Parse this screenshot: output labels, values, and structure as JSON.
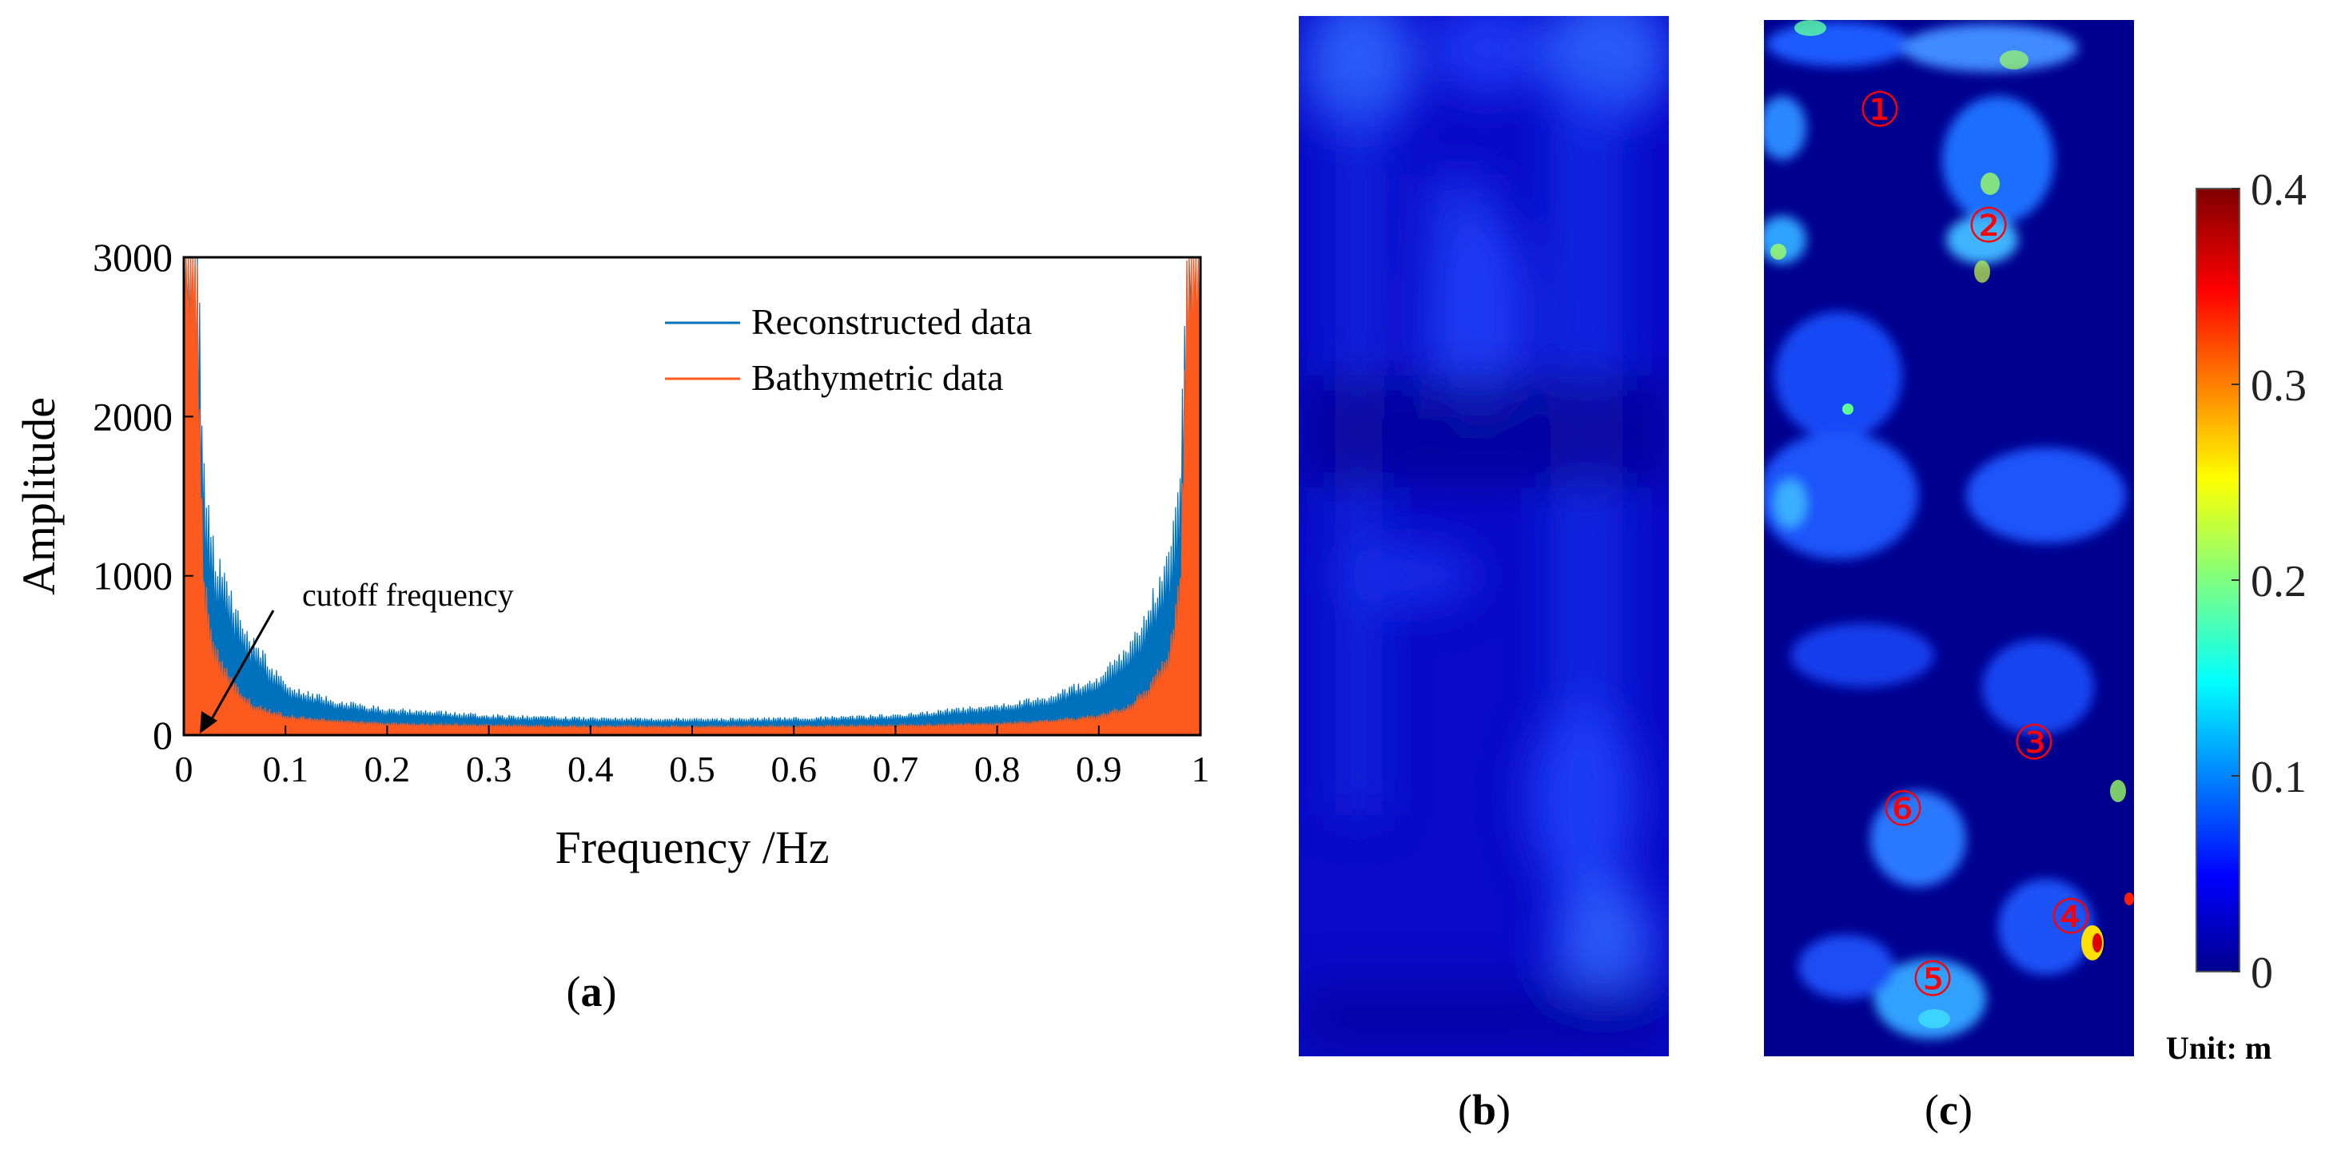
{
  "chart_data": [
    {
      "type": "line",
      "panel": "a",
      "caption_letter": "a",
      "xlabel": "Frequency /Hz",
      "ylabel": "Amplitude",
      "xlim": [
        0,
        1
      ],
      "ylim": [
        0,
        3000
      ],
      "xticks": [
        "0",
        "0.1",
        "0.2",
        "0.3",
        "0.4",
        "0.5",
        "0.6",
        "0.7",
        "0.8",
        "0.9",
        "1"
      ],
      "xtick_values": [
        0,
        0.1,
        0.2,
        0.3,
        0.4,
        0.5,
        0.6,
        0.7,
        0.8,
        0.9,
        1
      ],
      "yticks": [
        "0",
        "1000",
        "2000",
        "3000"
      ],
      "ytick_values": [
        0,
        1000,
        2000,
        3000
      ],
      "legend_position": "top-right",
      "annotation": {
        "text": "cutoff frequency",
        "x": 0.01,
        "y": 0
      },
      "series": [
        {
          "name": "Reconstructed data",
          "color": "#0072BD",
          "x": [
            0,
            0.01,
            0.02,
            0.03,
            0.05,
            0.07,
            0.1,
            0.15,
            0.2,
            0.3,
            0.4,
            0.5,
            0.6,
            0.7,
            0.8,
            0.85,
            0.9,
            0.93,
            0.95,
            0.97,
            0.98,
            0.99,
            1.0
          ],
          "values": [
            3000,
            3000,
            1300,
            900,
            650,
            450,
            250,
            170,
            130,
            100,
            85,
            80,
            85,
            100,
            150,
            190,
            290,
            450,
            650,
            900,
            1300,
            3000,
            3000
          ]
        },
        {
          "name": "Bathymetric data",
          "color": "#FF5A1E",
          "x": [
            0,
            0.01,
            0.02,
            0.03,
            0.05,
            0.07,
            0.1,
            0.15,
            0.2,
            0.3,
            0.4,
            0.5,
            0.6,
            0.7,
            0.8,
            0.85,
            0.9,
            0.93,
            0.95,
            0.97,
            0.98,
            0.99,
            1.0
          ],
          "values": [
            3000,
            3000,
            800,
            450,
            250,
            150,
            100,
            75,
            60,
            50,
            45,
            45,
            45,
            50,
            60,
            75,
            100,
            150,
            250,
            450,
            800,
            3000,
            3000
          ]
        }
      ]
    },
    {
      "type": "heatmap",
      "panel": "b",
      "caption_letter": "b",
      "colormap": "jet",
      "vmin": 0,
      "vmax": 0.4
    },
    {
      "type": "heatmap",
      "panel": "c",
      "caption_letter": "c",
      "colormap": "jet",
      "vmin": 0,
      "vmax": 0.4,
      "markers": [
        "①",
        "②",
        "③",
        "④",
        "⑤",
        "⑥"
      ],
      "marker_color": "#FF0000",
      "colorbar": {
        "ticks": [
          "0",
          "0.1",
          "0.2",
          "0.3",
          "0.4"
        ],
        "tick_values": [
          0,
          0.1,
          0.2,
          0.3,
          0.4
        ],
        "unit_label": "Unit: m"
      }
    }
  ]
}
